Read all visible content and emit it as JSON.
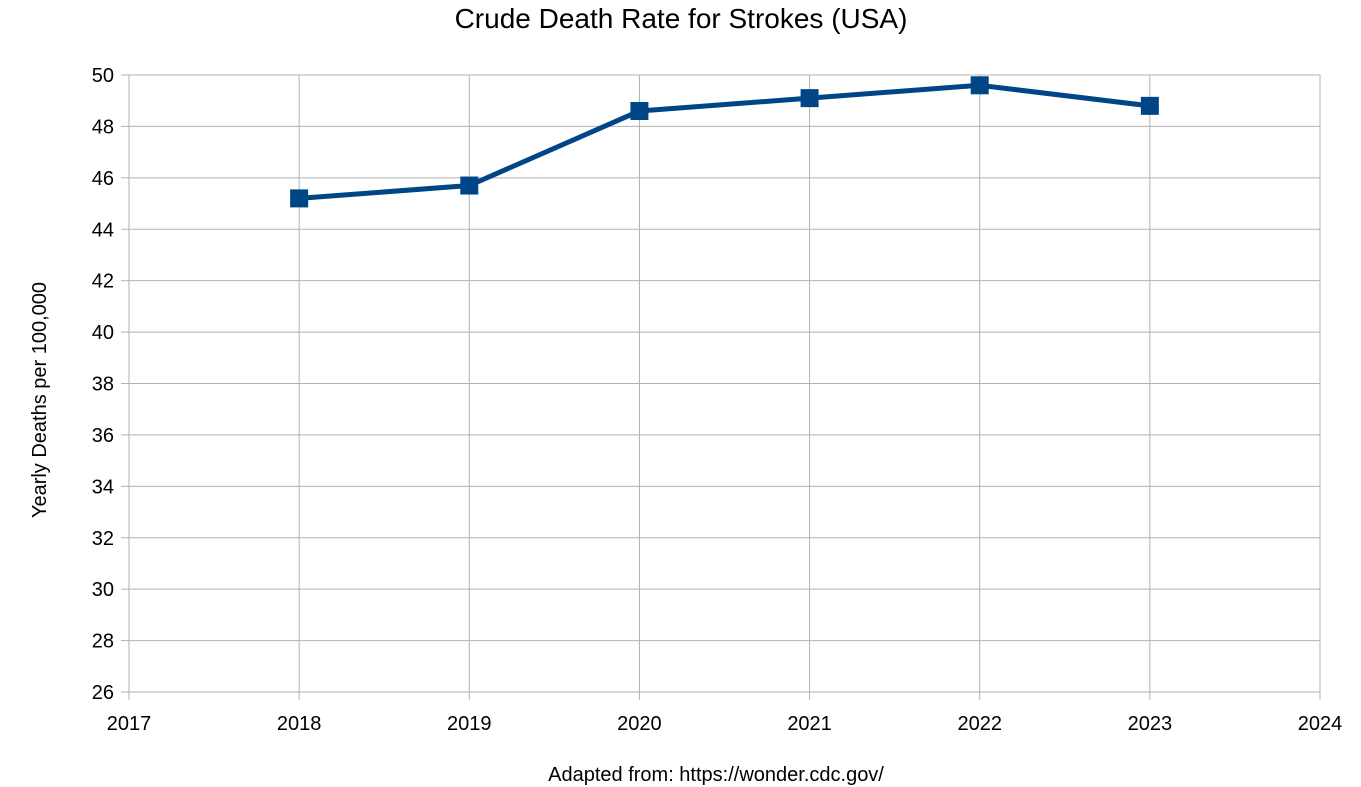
{
  "chart_data": {
    "type": "line",
    "title": "Crude Death Rate for Strokes (USA)",
    "xlabel": "",
    "ylabel": "Yearly Deaths per 100,000",
    "source_note": "Adapted from: https://wonder.cdc.gov/",
    "xlim": [
      2017,
      2024
    ],
    "ylim": [
      26,
      50
    ],
    "x_ticks": [
      2017,
      2018,
      2019,
      2020,
      2021,
      2022,
      2023,
      2024
    ],
    "y_ticks": [
      26,
      28,
      30,
      32,
      34,
      36,
      38,
      40,
      42,
      44,
      46,
      48,
      50
    ],
    "grid": true,
    "legend": "none",
    "series": [
      {
        "color": "#004586",
        "marker": "square",
        "x": [
          2018,
          2019,
          2020,
          2021,
          2022,
          2023
        ],
        "y": [
          45.2,
          45.7,
          48.6,
          49.1,
          49.6,
          48.8
        ]
      }
    ]
  }
}
